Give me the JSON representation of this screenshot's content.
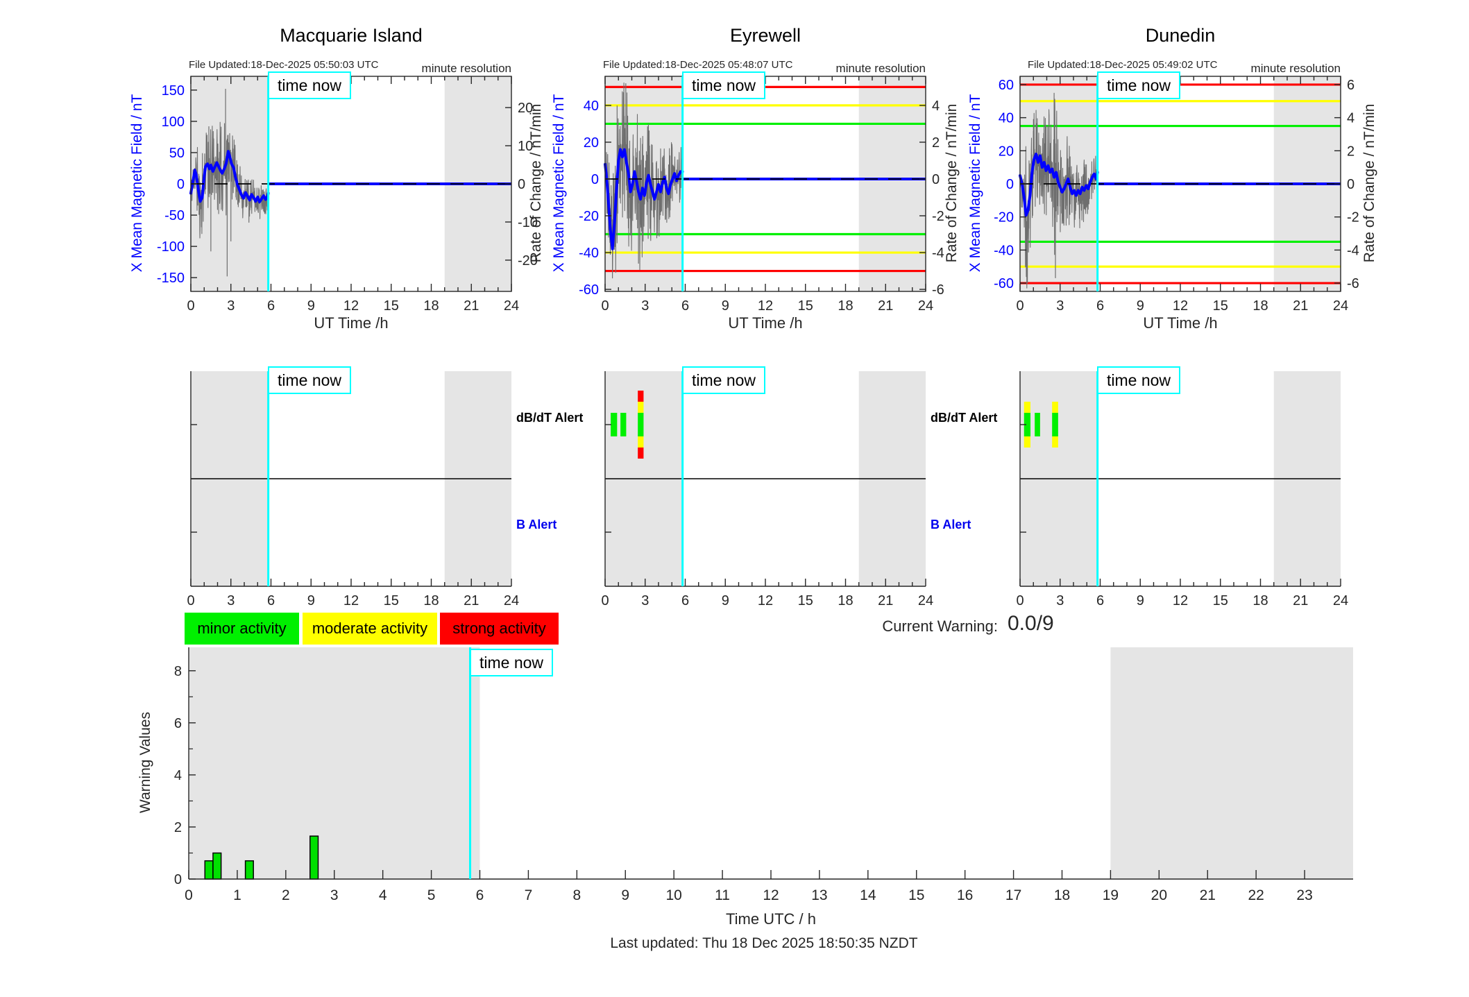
{
  "ui": {
    "time_now_label": "time now",
    "legend": {
      "items": [
        {
          "label": "minor activity",
          "color": "#00f000"
        },
        {
          "label": "moderate activity",
          "color": "#ffff00"
        },
        {
          "label": "strong activity",
          "color": "#ff0000"
        }
      ]
    },
    "current_warning": {
      "label": "Current Warning:",
      "value": "0.0/9"
    },
    "footer": "Last updated: Thu 18 Dec 2025 18:50:35 NZDT"
  },
  "chart_data": {
    "type": "line",
    "time_now_hour": 5.8,
    "shaded_hours": [
      [
        0,
        5.8
      ],
      [
        19,
        24
      ]
    ],
    "alert_row": {
      "dbdt_label": "dB/dT Alert",
      "b_label": "B Alert",
      "severity_colors": {
        "1": "#00f000",
        "2": "#ffff00",
        "3": "#ff0000"
      }
    },
    "stations": [
      {
        "title": "Macquarie Island",
        "file_updated": "File Updated:18-Dec-2025 05:50:03 UTC",
        "resolution_note": "minute resolution",
        "xlabel": "UT Time /h",
        "xticks": [
          0,
          3,
          6,
          9,
          12,
          15,
          18,
          21,
          24
        ],
        "xlim": [
          0,
          24
        ],
        "left_axis": {
          "label": "X Mean Magnetic Field / nT",
          "ticks": [
            150,
            100,
            50,
            0,
            -50,
            -100,
            -150
          ],
          "range": [
            -172,
            172
          ]
        },
        "right_axis": {
          "label": "Rate of Change / nT/min",
          "ticks": [
            20,
            10,
            0,
            -10,
            -20
          ],
          "range": [
            -28.2,
            28.2
          ]
        },
        "thresholds": [],
        "mean_trace": [
          [
            0,
            -15
          ],
          [
            0.15,
            3
          ],
          [
            0.3,
            22
          ],
          [
            0.4,
            15
          ],
          [
            0.55,
            -8
          ],
          [
            0.7,
            -28
          ],
          [
            0.85,
            -22
          ],
          [
            1.0,
            12
          ],
          [
            1.1,
            28
          ],
          [
            1.25,
            32
          ],
          [
            1.4,
            24
          ],
          [
            1.5,
            30
          ],
          [
            1.65,
            20
          ],
          [
            1.8,
            27
          ],
          [
            1.95,
            34
          ],
          [
            2.1,
            27
          ],
          [
            2.2,
            22
          ],
          [
            2.35,
            17
          ],
          [
            2.5,
            24
          ],
          [
            2.65,
            33
          ],
          [
            2.8,
            52
          ],
          [
            2.9,
            45
          ],
          [
            3.05,
            32
          ],
          [
            3.2,
            26
          ],
          [
            3.35,
            10
          ],
          [
            3.5,
            -2
          ],
          [
            3.65,
            -10
          ],
          [
            3.8,
            -18
          ],
          [
            3.95,
            -23
          ],
          [
            4.1,
            -14
          ],
          [
            4.25,
            -20
          ],
          [
            4.4,
            -26
          ],
          [
            4.55,
            -17
          ],
          [
            4.7,
            -22
          ],
          [
            4.85,
            -28
          ],
          [
            5.0,
            -21
          ],
          [
            5.15,
            -29
          ],
          [
            5.3,
            -24
          ],
          [
            5.45,
            -19
          ],
          [
            5.6,
            -25
          ],
          [
            5.75,
            -20
          ],
          [
            5.8,
            -15
          ]
        ],
        "noise_envelope": [
          [
            0,
            25
          ],
          [
            0.3,
            55
          ],
          [
            0.6,
            70
          ],
          [
            1.0,
            72
          ],
          [
            1.5,
            70
          ],
          [
            2.0,
            75
          ],
          [
            2.5,
            80
          ],
          [
            2.7,
            85
          ],
          [
            3.0,
            60
          ],
          [
            3.5,
            45
          ],
          [
            4.0,
            35
          ],
          [
            4.5,
            33
          ],
          [
            5.0,
            30
          ],
          [
            5.5,
            26
          ],
          [
            5.8,
            24
          ]
        ],
        "noise_spikes": [
          [
            1.35,
            92
          ],
          [
            1.5,
            -108
          ],
          [
            2.6,
            152
          ],
          [
            2.72,
            -148
          ],
          [
            3.0,
            -92
          ],
          [
            4.35,
            -62
          ]
        ],
        "alert_bars": []
      },
      {
        "title": "Eyrewell",
        "file_updated": "File Updated:18-Dec-2025 05:48:07 UTC",
        "resolution_note": "minute resolution",
        "xlabel": "UT Time /h",
        "xticks": [
          0,
          3,
          6,
          9,
          12,
          15,
          18,
          21,
          24
        ],
        "xlim": [
          0,
          24
        ],
        "left_axis": {
          "label": "X Mean Magnetic Field / nT",
          "ticks": [
            40,
            20,
            0,
            -20,
            -40,
            -60
          ],
          "range": [
            -61.1,
            55.8
          ]
        },
        "right_axis": {
          "label": "Rate of Change / nT/min",
          "ticks": [
            4,
            2,
            0,
            -2,
            -4,
            -6
          ],
          "range": [
            -6.11,
            5.58
          ]
        },
        "thresholds": [
          {
            "value": 50,
            "color": "#ff0000"
          },
          {
            "value": 40,
            "color": "#ffff00"
          },
          {
            "value": 30,
            "color": "#00f000"
          },
          {
            "value": -30,
            "color": "#00f000"
          },
          {
            "value": -40,
            "color": "#ffff00"
          },
          {
            "value": -50,
            "color": "#ff0000"
          }
        ],
        "mean_trace": [
          [
            0,
            8
          ],
          [
            0.1,
            2
          ],
          [
            0.25,
            -12
          ],
          [
            0.4,
            -28
          ],
          [
            0.55,
            -38
          ],
          [
            0.7,
            -24
          ],
          [
            0.85,
            -6
          ],
          [
            1.0,
            10
          ],
          [
            1.15,
            16
          ],
          [
            1.3,
            12
          ],
          [
            1.45,
            16
          ],
          [
            1.6,
            9
          ],
          [
            1.75,
            3
          ],
          [
            1.9,
            -7
          ],
          [
            2.05,
            -3
          ],
          [
            2.2,
            4
          ],
          [
            2.35,
            -1
          ],
          [
            2.5,
            -7
          ],
          [
            2.65,
            -11
          ],
          [
            2.8,
            -5
          ],
          [
            2.95,
            -9
          ],
          [
            3.1,
            -2
          ],
          [
            3.25,
            2
          ],
          [
            3.4,
            -3
          ],
          [
            3.55,
            -7
          ],
          [
            3.7,
            -11
          ],
          [
            3.85,
            -7
          ],
          [
            4.0,
            -3
          ],
          [
            4.15,
            -7
          ],
          [
            4.3,
            -2
          ],
          [
            4.45,
            1
          ],
          [
            4.6,
            -5
          ],
          [
            4.75,
            -8
          ],
          [
            4.9,
            -3
          ],
          [
            5.05,
            0
          ],
          [
            5.2,
            3
          ],
          [
            5.35,
            -1
          ],
          [
            5.5,
            2
          ],
          [
            5.65,
            4
          ],
          [
            5.8,
            4
          ]
        ],
        "noise_envelope": [
          [
            0,
            10
          ],
          [
            0.3,
            28
          ],
          [
            0.6,
            45
          ],
          [
            0.9,
            36
          ],
          [
            1.2,
            32
          ],
          [
            1.55,
            48
          ],
          [
            1.9,
            36
          ],
          [
            2.2,
            40
          ],
          [
            2.6,
            42
          ],
          [
            3.0,
            38
          ],
          [
            3.5,
            32
          ],
          [
            4.0,
            28
          ],
          [
            4.5,
            25
          ],
          [
            5.0,
            22
          ],
          [
            5.5,
            20
          ],
          [
            5.8,
            18
          ]
        ],
        "noise_spikes": [
          [
            0.55,
            -54
          ],
          [
            0.9,
            40
          ],
          [
            1.55,
            52
          ],
          [
            2.5,
            -46
          ]
        ],
        "alert_bars": [
          {
            "start_hour": 0.42,
            "end_hour": 0.9,
            "severity": 1
          },
          {
            "start_hour": 1.15,
            "end_hour": 1.58,
            "severity": 1
          },
          {
            "start_hour": 2.45,
            "end_hour": 2.88,
            "severity": 3
          }
        ]
      },
      {
        "title": "Dunedin",
        "file_updated": "File Updated:18-Dec-2025 05:49:02 UTC",
        "resolution_note": "minute resolution",
        "xlabel": "UT Time /h",
        "xticks": [
          0,
          3,
          6,
          9,
          12,
          15,
          18,
          21,
          24
        ],
        "xlim": [
          0,
          24
        ],
        "left_axis": {
          "label": "X Mean Magnetic Field / nT",
          "ticks": [
            60,
            40,
            20,
            0,
            -20,
            -40,
            -60
          ],
          "range": [
            -65,
            65
          ]
        },
        "right_axis": {
          "label": "Rate of Change / nT/min",
          "ticks": [
            6,
            4,
            2,
            0,
            -2,
            -4,
            -6
          ],
          "range": [
            -6.5,
            6.5
          ]
        },
        "thresholds": [
          {
            "value": 60,
            "color": "#ff0000"
          },
          {
            "value": 50,
            "color": "#ffff00"
          },
          {
            "value": 35,
            "color": "#00f000"
          },
          {
            "value": -35,
            "color": "#00f000"
          },
          {
            "value": -50,
            "color": "#ffff00"
          },
          {
            "value": -60,
            "color": "#ff0000"
          }
        ],
        "mean_trace": [
          [
            0,
            5
          ],
          [
            0.15,
            0
          ],
          [
            0.3,
            -8
          ],
          [
            0.45,
            -19
          ],
          [
            0.6,
            -16
          ],
          [
            0.75,
            -7
          ],
          [
            0.9,
            7
          ],
          [
            1.05,
            15
          ],
          [
            1.2,
            18
          ],
          [
            1.35,
            13
          ],
          [
            1.5,
            17
          ],
          [
            1.65,
            10
          ],
          [
            1.8,
            13
          ],
          [
            1.95,
            8
          ],
          [
            2.1,
            11
          ],
          [
            2.25,
            7
          ],
          [
            2.4,
            9
          ],
          [
            2.55,
            4
          ],
          [
            2.7,
            7
          ],
          [
            2.85,
            1
          ],
          [
            3.0,
            -2
          ],
          [
            3.15,
            -5
          ],
          [
            3.3,
            -3
          ],
          [
            3.45,
            0
          ],
          [
            3.6,
            3
          ],
          [
            3.75,
            -2
          ],
          [
            3.9,
            -6
          ],
          [
            4.05,
            -4
          ],
          [
            4.2,
            -7
          ],
          [
            4.35,
            -4
          ],
          [
            4.5,
            -6
          ],
          [
            4.65,
            -2
          ],
          [
            4.8,
            -4
          ],
          [
            4.95,
            -1
          ],
          [
            5.1,
            -3
          ],
          [
            5.25,
            1
          ],
          [
            5.4,
            4
          ],
          [
            5.55,
            6
          ],
          [
            5.7,
            3
          ],
          [
            5.8,
            7
          ]
        ],
        "noise_envelope": [
          [
            0,
            10
          ],
          [
            0.3,
            28
          ],
          [
            0.55,
            52
          ],
          [
            0.8,
            36
          ],
          [
            1.2,
            30
          ],
          [
            1.6,
            28
          ],
          [
            2.0,
            35
          ],
          [
            2.5,
            48
          ],
          [
            2.7,
            50
          ],
          [
            3.0,
            30
          ],
          [
            3.5,
            28
          ],
          [
            4.0,
            25
          ],
          [
            4.5,
            22
          ],
          [
            5.0,
            18
          ],
          [
            5.5,
            15
          ],
          [
            5.8,
            13
          ]
        ],
        "noise_spikes": [
          [
            0.55,
            -60
          ],
          [
            1.0,
            32
          ],
          [
            2.55,
            55
          ],
          [
            2.65,
            -57
          ]
        ],
        "alert_bars": [
          {
            "start_hour": 0.3,
            "end_hour": 0.78,
            "severity": 2
          },
          {
            "start_hour": 1.1,
            "end_hour": 1.5,
            "severity": 1
          },
          {
            "start_hour": 2.4,
            "end_hour": 2.85,
            "severity": 2
          }
        ]
      }
    ],
    "warning_chart": {
      "type": "bar",
      "ylabel": "Warning Values",
      "xlabel": "Time UTC / h",
      "yticks": [
        0,
        2,
        4,
        6,
        8
      ],
      "ylim": [
        0,
        8.9
      ],
      "xlim": [
        0,
        24
      ],
      "xtick_labels": [
        0,
        1,
        2,
        3,
        4,
        5,
        6,
        7,
        8,
        9,
        10,
        11,
        12,
        13,
        14,
        15,
        16,
        17,
        18,
        19,
        20,
        21,
        22,
        23
      ],
      "bars": [
        {
          "x0": 0.333,
          "x1": 0.5,
          "value": 0.7
        },
        {
          "x0": 0.5,
          "x1": 0.667,
          "value": 1.0
        },
        {
          "x0": 1.167,
          "x1": 1.333,
          "value": 0.7
        },
        {
          "x0": 2.5,
          "x1": 2.667,
          "value": 1.65
        }
      ],
      "bar_color": "#00e000",
      "shaded_hours": [
        [
          0,
          6
        ],
        [
          19,
          24
        ]
      ],
      "time_now_hour": 5.8
    }
  },
  "colors": {
    "trace_blue": "#0000ff",
    "noise_gray": "#6e6e6e",
    "shade_gray": "#e5e5e5",
    "cyan": "#00ffff",
    "axis": "#262626",
    "tick_text_blue": "#0000ff"
  }
}
